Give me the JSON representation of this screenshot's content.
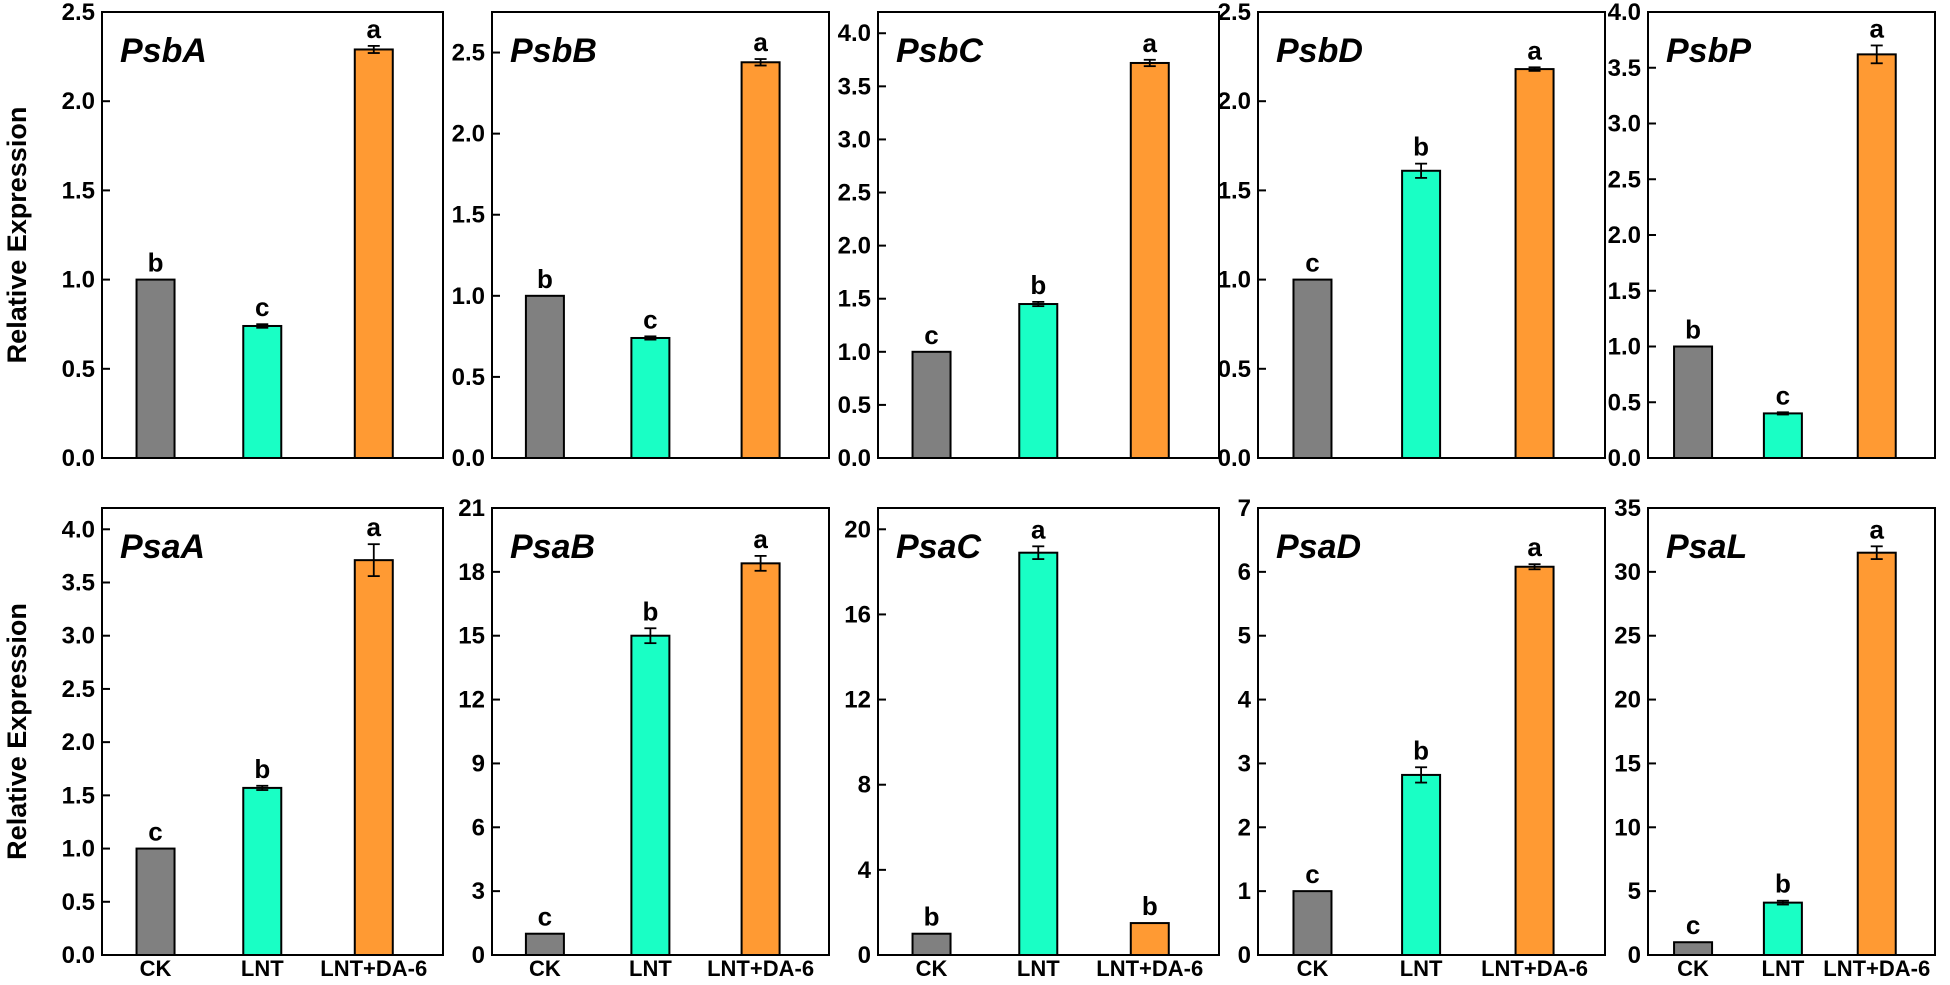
{
  "chart_data": [
    {
      "type": "bar",
      "title": "PsbA",
      "ylabel": "Relative Expression",
      "categories": [
        "CK",
        "LNT",
        "LNT+DA-6"
      ],
      "values": [
        1.0,
        0.74,
        2.29
      ],
      "errors": [
        0,
        0.01,
        0.02
      ],
      "letters": [
        "b",
        "c",
        "a"
      ],
      "ylim": [
        0,
        2.5
      ],
      "yticks": [
        "0.0",
        "0.5",
        "1.0",
        "1.5",
        "2.0",
        "2.5"
      ]
    },
    {
      "type": "bar",
      "title": "PsbB",
      "ylabel": "",
      "categories": [
        "CK",
        "LNT",
        "LNT+DA-6"
      ],
      "values": [
        1.0,
        0.74,
        2.44
      ],
      "errors": [
        0,
        0.01,
        0.02
      ],
      "letters": [
        "b",
        "c",
        "a"
      ],
      "ylim": [
        0,
        2.75
      ],
      "yticks": [
        "0.0",
        "0.5",
        "1.0",
        "1.5",
        "2.0",
        "2.5"
      ]
    },
    {
      "type": "bar",
      "title": "PsbC",
      "ylabel": "",
      "categories": [
        "CK",
        "LNT",
        "LNT+DA-6"
      ],
      "values": [
        1.0,
        1.45,
        3.72
      ],
      "errors": [
        0,
        0.02,
        0.03
      ],
      "letters": [
        "c",
        "b",
        "a"
      ],
      "ylim": [
        0,
        4.2
      ],
      "yticks": [
        "0.0",
        "0.5",
        "1.0",
        "1.5",
        "2.0",
        "2.5",
        "3.0",
        "3.5",
        "4.0"
      ]
    },
    {
      "type": "bar",
      "title": "PsbD",
      "ylabel": "",
      "categories": [
        "CK",
        "LNT",
        "LNT+DA-6"
      ],
      "values": [
        1.0,
        1.61,
        2.18
      ],
      "errors": [
        0,
        0.04,
        0.01
      ],
      "letters": [
        "c",
        "b",
        "a"
      ],
      "ylim": [
        0,
        2.5
      ],
      "yticks": [
        "0.0",
        "0.5",
        "1.0",
        "1.5",
        "2.0",
        "2.5"
      ]
    },
    {
      "type": "bar",
      "title": "PsbP",
      "ylabel": "",
      "categories": [
        "CK",
        "LNT",
        "LNT+DA-6"
      ],
      "values": [
        1.0,
        0.4,
        3.62
      ],
      "errors": [
        0,
        0.01,
        0.08
      ],
      "letters": [
        "b",
        "c",
        "a"
      ],
      "ylim": [
        0,
        4.0
      ],
      "yticks": [
        "0.0",
        "0.5",
        "1.0",
        "1.5",
        "2.0",
        "2.5",
        "3.0",
        "3.5",
        "4.0"
      ]
    },
    {
      "type": "bar",
      "title": "PsaA",
      "ylabel": "Relative Expression",
      "categories": [
        "CK",
        "LNT",
        "LNT+DA-6"
      ],
      "values": [
        1.0,
        1.57,
        3.71
      ],
      "errors": [
        0,
        0.02,
        0.15
      ],
      "letters": [
        "c",
        "b",
        "a"
      ],
      "ylim": [
        0,
        4.2
      ],
      "yticks": [
        "0.0",
        "0.5",
        "1.0",
        "1.5",
        "2.0",
        "2.5",
        "3.0",
        "3.5",
        "4.0"
      ]
    },
    {
      "type": "bar",
      "title": "PsaB",
      "ylabel": "",
      "categories": [
        "CK",
        "LNT",
        "LNT+DA-6"
      ],
      "values": [
        1.0,
        15.0,
        18.4
      ],
      "errors": [
        0,
        0.35,
        0.35
      ],
      "letters": [
        "c",
        "b",
        "a"
      ],
      "ylim": [
        0,
        21
      ],
      "yticks": [
        "0",
        "3",
        "6",
        "9",
        "12",
        "15",
        "18",
        "21"
      ]
    },
    {
      "type": "bar",
      "title": "PsaC",
      "ylabel": "",
      "categories": [
        "CK",
        "LNT",
        "LNT+DA-6"
      ],
      "values": [
        1.0,
        18.9,
        1.5
      ],
      "errors": [
        0,
        0.3,
        0
      ],
      "letters": [
        "b",
        "a",
        "b"
      ],
      "ylim": [
        0,
        21
      ],
      "yticks": [
        "0",
        "4",
        "8",
        "12",
        "16",
        "20"
      ]
    },
    {
      "type": "bar",
      "title": "PsaD",
      "ylabel": "",
      "categories": [
        "CK",
        "LNT",
        "LNT+DA-6"
      ],
      "values": [
        1.0,
        2.82,
        6.08
      ],
      "errors": [
        0,
        0.12,
        0.04
      ],
      "letters": [
        "c",
        "b",
        "a"
      ],
      "ylim": [
        0,
        7
      ],
      "yticks": [
        "0",
        "1",
        "2",
        "3",
        "4",
        "5",
        "6",
        "7"
      ]
    },
    {
      "type": "bar",
      "title": "PsaL",
      "ylabel": "",
      "categories": [
        "CK",
        "LNT",
        "LNT+DA-6"
      ],
      "values": [
        1.0,
        4.1,
        31.5
      ],
      "errors": [
        0,
        0.15,
        0.5
      ],
      "letters": [
        "c",
        "b",
        "a"
      ],
      "ylim": [
        0,
        35
      ],
      "yticks": [
        "0",
        "5",
        "10",
        "15",
        "20",
        "25",
        "30",
        "35"
      ]
    }
  ],
  "colors": {
    "CK": "#808080",
    "LNT": "#19ffc5",
    "LNT+DA-6": "#ff9a33",
    "axis": "#000000"
  }
}
